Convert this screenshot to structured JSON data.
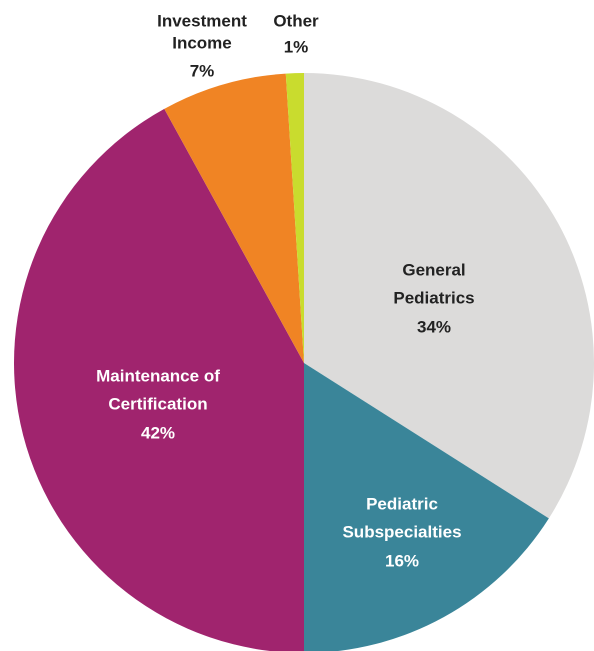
{
  "chart_data": {
    "type": "pie",
    "categories": [
      [
        "General",
        "Pediatrics"
      ],
      [
        "Pediatric",
        "Subspecialties"
      ],
      [
        "Maintenance of",
        "Certification"
      ],
      [
        "Investment",
        "Income"
      ],
      [
        "Other"
      ]
    ],
    "values": [
      34,
      16,
      42,
      7,
      1
    ],
    "value_labels": [
      "34%",
      "16%",
      "42%",
      "7%",
      "1%"
    ],
    "colors": [
      "#dcdbda",
      "#3a8599",
      "#a0246e",
      "#f08424",
      "#c9dc2e"
    ]
  }
}
